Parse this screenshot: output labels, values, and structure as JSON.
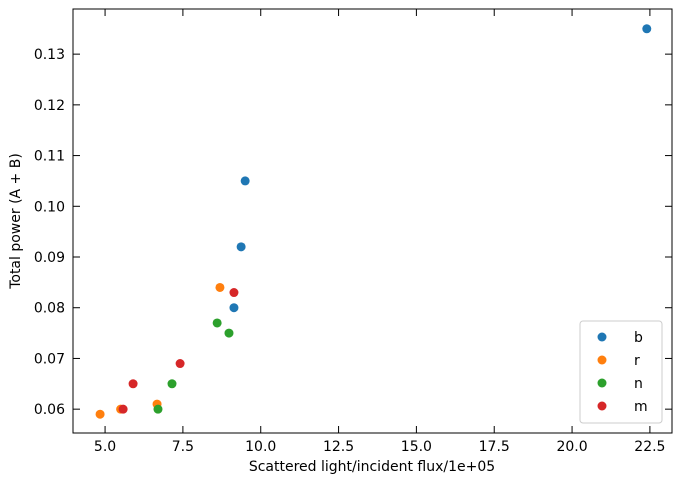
{
  "chart_data": {
    "type": "scatter",
    "xlabel": "Scattered light/incident flux/1e+05",
    "ylabel": "Total power (A + B)",
    "xlim": [
      3.97,
      23.21
    ],
    "ylim": [
      0.0553,
      0.1389
    ],
    "xticks": [
      {
        "value": 5,
        "label": "5.0"
      },
      7.5,
      {
        "value": 10,
        "label": "10.0"
      },
      12.5,
      {
        "value": 15,
        "label": "15.0"
      },
      17.5,
      {
        "value": 20,
        "label": "20.0"
      },
      22.5
    ],
    "yticks": [
      0.06,
      0.07,
      0.08,
      0.09,
      {
        "value": 0.1,
        "label": "0.10"
      },
      0.11,
      0.12,
      0.13
    ],
    "legend": "lower right",
    "series": [
      {
        "name": "b",
        "color": "#1f77b4",
        "x": [
          22.4,
          9.5,
          9.37,
          9.14
        ],
        "values": [
          0.135,
          0.105,
          0.092,
          0.08
        ]
      },
      {
        "name": "r",
        "color": "#ff7f0e",
        "x": [
          4.84,
          5.5,
          6.67,
          8.69
        ],
        "values": [
          0.059,
          0.06,
          0.061,
          0.084
        ]
      },
      {
        "name": "n",
        "color": "#2ca02c",
        "x": [
          6.7,
          7.15,
          8.6,
          8.98
        ],
        "values": [
          0.06,
          0.065,
          0.077,
          0.075
        ]
      },
      {
        "name": "m",
        "color": "#d62728",
        "x": [
          5.58,
          5.9,
          7.41,
          9.14
        ],
        "values": [
          0.06,
          0.065,
          0.069,
          0.083
        ]
      }
    ]
  }
}
